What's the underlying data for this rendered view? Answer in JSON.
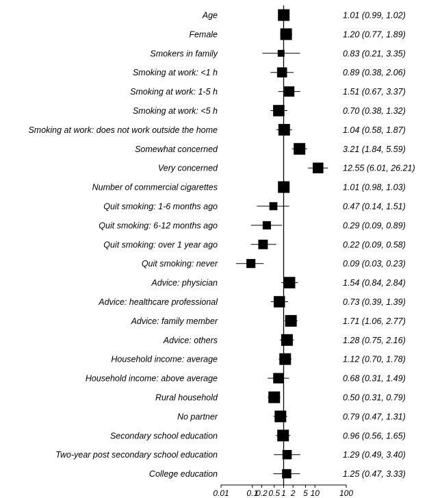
{
  "chart_data": {
    "type": "forest",
    "x_scale": "log",
    "reference_value": 1,
    "xlim": [
      0.01,
      100
    ],
    "x_ticks": [
      "0.01",
      "0.1",
      "0.2",
      "0.5",
      "1",
      "2",
      "5",
      "10",
      "100"
    ],
    "rows": [
      {
        "label": "Age",
        "or": 1.01,
        "lo": 0.99,
        "hi": 1.02,
        "text": "1.01 (0.99, 1.02)"
      },
      {
        "label": "Female",
        "or": 1.2,
        "lo": 0.77,
        "hi": 1.89,
        "text": "1.20 (0.77, 1.89)"
      },
      {
        "label": "Smokers in family",
        "or": 0.83,
        "lo": 0.21,
        "hi": 3.35,
        "text": "0.83 (0.21, 3.35)"
      },
      {
        "label": "Smoking at work: <1 h",
        "or": 0.89,
        "lo": 0.38,
        "hi": 2.06,
        "text": "0.89 (0.38, 2.06)"
      },
      {
        "label": "Smoking at work:  1-5 h",
        "or": 1.51,
        "lo": 0.67,
        "hi": 3.37,
        "text": "1.51 (0.67, 3.37)"
      },
      {
        "label": "Smoking at work:  <5 h",
        "or": 0.7,
        "lo": 0.38,
        "hi": 1.32,
        "text": "0.70 (0.38, 1.32)"
      },
      {
        "label": "Smoking at work: does not work outside the home",
        "or": 1.04,
        "lo": 0.58,
        "hi": 1.87,
        "text": "1.04 (0.58, 1.87)"
      },
      {
        "label": "Somewhat concerned",
        "or": 3.21,
        "lo": 1.84,
        "hi": 5.59,
        "text": "3.21 (1.84, 5.59)"
      },
      {
        "label": "Very concerned",
        "or": 12.55,
        "lo": 6.01,
        "hi": 26.21,
        "text": "12.55 (6.01, 26.21)"
      },
      {
        "label": "Number of commercial cigarettes",
        "or": 1.01,
        "lo": 0.98,
        "hi": 1.03,
        "text": "1.01 (0.98, 1.03)"
      },
      {
        "label": "Quit smoking: 1-6 months ago",
        "or": 0.47,
        "lo": 0.14,
        "hi": 1.51,
        "text": "0.47 (0.14, 1.51)"
      },
      {
        "label": "Quit smoking: 6-12 months ago",
        "or": 0.29,
        "lo": 0.09,
        "hi": 0.89,
        "text": "0.29 (0.09, 0.89)"
      },
      {
        "label": "Quit smoking: over 1 year ago",
        "or": 0.22,
        "lo": 0.09,
        "hi": 0.58,
        "text": "0.22 (0.09, 0.58)"
      },
      {
        "label": "Quit smoking: never",
        "or": 0.09,
        "lo": 0.03,
        "hi": 0.23,
        "text": "0.09 (0.03, 0.23)"
      },
      {
        "label": "Advice: physician",
        "or": 1.54,
        "lo": 0.84,
        "hi": 2.84,
        "text": "1.54 (0.84, 2.84)"
      },
      {
        "label": "Advice: healthcare professional",
        "or": 0.73,
        "lo": 0.39,
        "hi": 1.39,
        "text": "0.73 (0.39, 1.39)"
      },
      {
        "label": "Advice: family member",
        "or": 1.71,
        "lo": 1.06,
        "hi": 2.77,
        "text": "1.71 (1.06, 2.77)"
      },
      {
        "label": "Advice: others",
        "or": 1.28,
        "lo": 0.75,
        "hi": 2.16,
        "text": "1.28 (0.75, 2.16)"
      },
      {
        "label": "Household income: average",
        "or": 1.12,
        "lo": 0.7,
        "hi": 1.78,
        "text": "1.12 (0.70, 1.78)"
      },
      {
        "label": "Household income: above average",
        "or": 0.68,
        "lo": 0.31,
        "hi": 1.49,
        "text": "0.68 (0.31, 1.49)"
      },
      {
        "label": "Rural household",
        "or": 0.5,
        "lo": 0.31,
        "hi": 0.79,
        "text": "0.50 (0.31, 0.79)"
      },
      {
        "label": "No partner",
        "or": 0.79,
        "lo": 0.47,
        "hi": 1.31,
        "text": "0.79 (0.47, 1.31)"
      },
      {
        "label": "Secondary school education",
        "or": 0.96,
        "lo": 0.56,
        "hi": 1.65,
        "text": "0.96 (0.56, 1.65)"
      },
      {
        "label": "Two-year post secondary school education",
        "or": 1.29,
        "lo": 0.49,
        "hi": 3.4,
        "text": "1.29 (0.49, 3.40)"
      },
      {
        "label": "College education",
        "or": 1.25,
        "lo": 0.47,
        "hi": 3.33,
        "text": "1.25 (0.47, 3.33)"
      }
    ]
  }
}
